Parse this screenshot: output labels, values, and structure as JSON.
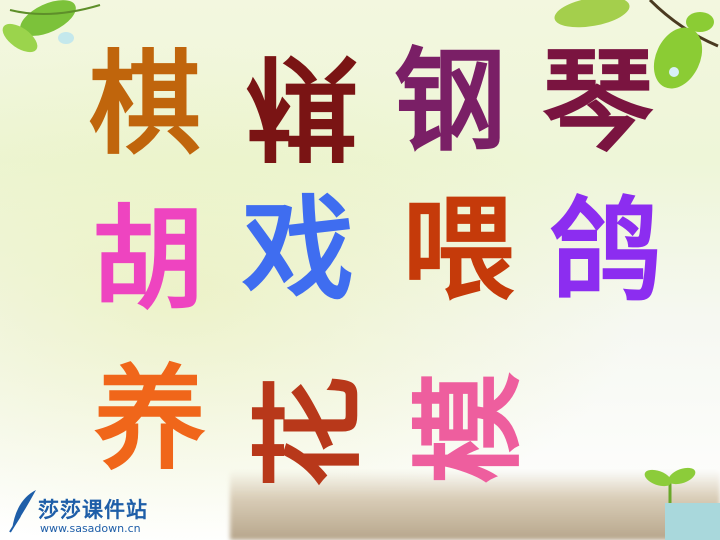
{
  "characters": [
    {
      "char": "棋",
      "color": "#c0650c",
      "style": "normal"
    },
    {
      "char": "棋",
      "color": "#7a1414",
      "style": "flipped"
    },
    {
      "char": "钢",
      "color": "#7a1f66",
      "style": "normal"
    },
    {
      "char": "琴",
      "color": "#7a1440",
      "style": "normal"
    },
    {
      "char": "胡",
      "color": "#ee44c0",
      "style": "normal"
    },
    {
      "char": "戏",
      "color": "#3f6df0",
      "style": "normal"
    },
    {
      "char": "喂",
      "color": "#c53a0a",
      "style": "normal"
    },
    {
      "char": "鸽",
      "color": "#8c2df0",
      "style": "normal"
    },
    {
      "char": "养",
      "color": "#f0661a",
      "style": "normal"
    },
    {
      "char": "花",
      "color": "#b8381a",
      "style": "rotated"
    },
    {
      "char": "模",
      "color": "#ee5e9e",
      "style": "rotated"
    }
  ],
  "logo": {
    "name": "莎莎课件站",
    "url": "www.sasadown.cn"
  },
  "colors": {
    "logo_blue": "#1e5ea8",
    "accent_teal": "#a9d8dc"
  },
  "icons": [
    "leaf-cluster-top-left",
    "leaf-cluster-top-right",
    "sprout-icon",
    "quill-logo-icon"
  ]
}
